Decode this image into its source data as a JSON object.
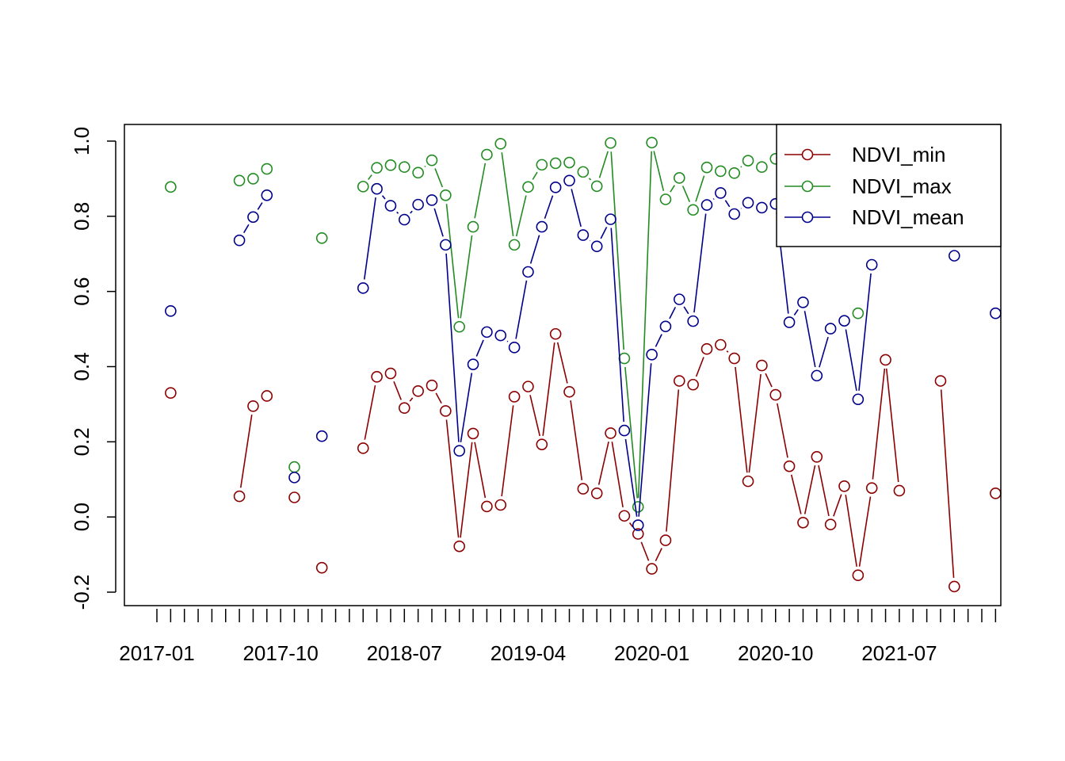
{
  "chart_data": {
    "type": "line",
    "title": "",
    "xlabel": "",
    "ylabel": "",
    "ylim": [
      -0.2,
      1.0
    ],
    "yticks": [
      "-0.2",
      "0.0",
      "0.2",
      "0.4",
      "0.6",
      "0.8",
      "1.0"
    ],
    "x_tick_labels": [
      "2017-01",
      "2017-10",
      "2018-07",
      "2019-04",
      "2020-01",
      "2020-10",
      "2021-07"
    ],
    "months": [
      "2017-01",
      "2017-02",
      "2017-03",
      "2017-04",
      "2017-05",
      "2017-06",
      "2017-07",
      "2017-08",
      "2017-09",
      "2017-10",
      "2017-11",
      "2017-12",
      "2018-01",
      "2018-02",
      "2018-03",
      "2018-04",
      "2018-05",
      "2018-06",
      "2018-07",
      "2018-08",
      "2018-09",
      "2018-10",
      "2018-11",
      "2018-12",
      "2019-01",
      "2019-02",
      "2019-03",
      "2019-04",
      "2019-05",
      "2019-06",
      "2019-07",
      "2019-08",
      "2019-09",
      "2019-10",
      "2019-11",
      "2019-12",
      "2020-01",
      "2020-02",
      "2020-03",
      "2020-04",
      "2020-05",
      "2020-06",
      "2020-07",
      "2020-08",
      "2020-09",
      "2020-10",
      "2020-11",
      "2020-12",
      "2021-01",
      "2021-02",
      "2021-03",
      "2021-04",
      "2021-05",
      "2021-06",
      "2021-07",
      "2021-08",
      "2021-09",
      "2021-10",
      "2021-11",
      "2021-12",
      "2022-01",
      "2022-02"
    ],
    "series": [
      {
        "name": "NDVI_min",
        "color": "#8b0000",
        "values": [
          null,
          0.33,
          null,
          null,
          null,
          null,
          0.055,
          0.295,
          0.322,
          null,
          0.052,
          null,
          -0.135,
          null,
          null,
          0.183,
          0.373,
          0.382,
          0.29,
          0.335,
          0.35,
          0.282,
          -0.078,
          0.222,
          0.028,
          0.032,
          0.32,
          0.347,
          0.193,
          0.487,
          0.333,
          0.075,
          0.063,
          0.223,
          0.003,
          -0.045,
          -0.138,
          -0.062,
          0.362,
          0.352,
          0.447,
          0.458,
          0.422,
          0.095,
          0.403,
          0.325,
          0.135,
          -0.015,
          0.16,
          -0.02,
          0.082,
          -0.155,
          0.077,
          0.418,
          0.07,
          null,
          null,
          0.362,
          -0.185,
          null,
          null,
          0.063
        ]
      },
      {
        "name": "NDVI_max",
        "color": "#228b22",
        "values": [
          null,
          0.878,
          null,
          null,
          null,
          null,
          0.895,
          0.9,
          0.926,
          null,
          0.133,
          null,
          0.742,
          null,
          null,
          0.879,
          0.929,
          0.936,
          0.931,
          0.916,
          0.949,
          0.856,
          0.506,
          0.772,
          0.964,
          0.993,
          0.724,
          0.878,
          0.937,
          0.941,
          0.943,
          0.918,
          0.88,
          0.995,
          0.422,
          0.027,
          0.996,
          0.845,
          0.902,
          0.817,
          0.93,
          0.92,
          0.915,
          0.948,
          0.931,
          0.953,
          null,
          null,
          null,
          null,
          null,
          0.542,
          null,
          null,
          null,
          null,
          null,
          null,
          null,
          null,
          null,
          null
        ]
      },
      {
        "name": "NDVI_mean",
        "color": "#00008b",
        "values": [
          null,
          0.548,
          null,
          null,
          null,
          null,
          0.736,
          0.798,
          0.856,
          null,
          0.105,
          null,
          0.215,
          null,
          null,
          0.609,
          0.873,
          0.828,
          0.791,
          0.831,
          0.843,
          0.724,
          0.176,
          0.406,
          0.492,
          0.483,
          0.451,
          0.652,
          0.772,
          0.877,
          0.895,
          0.75,
          0.72,
          0.792,
          0.23,
          -0.022,
          0.432,
          0.507,
          0.579,
          0.521,
          0.83,
          0.862,
          0.806,
          0.836,
          0.823,
          0.833,
          0.518,
          0.571,
          0.376,
          0.501,
          0.522,
          0.313,
          0.671,
          null,
          null,
          null,
          null,
          null,
          0.695,
          null,
          null,
          0.542
        ]
      }
    ],
    "legend": {
      "position": "top-right",
      "entries": [
        "NDVI_min",
        "NDVI_max",
        "NDVI_mean"
      ]
    }
  }
}
